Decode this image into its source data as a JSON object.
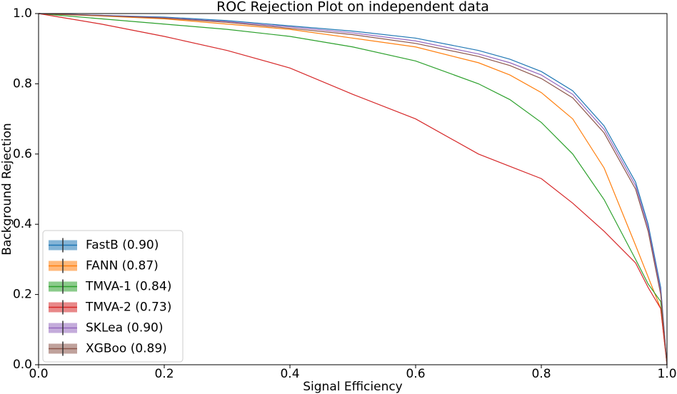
{
  "chart_data": {
    "type": "line",
    "title": "ROC Rejection Plot on independent data",
    "x_label": "Signal Efficiency",
    "y_label": "Background Rejection",
    "x": [
      0,
      0.1,
      0.2,
      0.3,
      0.4,
      0.5,
      0.6,
      0.7,
      0.75,
      0.8,
      0.85,
      0.9,
      0.95,
      0.97,
      0.99,
      1.0
    ],
    "series": [
      {
        "name": "FastB (0.90)",
        "color": "#1f77b4",
        "values": [
          1.0,
          0.995,
          0.99,
          0.98,
          0.965,
          0.95,
          0.93,
          0.895,
          0.87,
          0.835,
          0.78,
          0.68,
          0.52,
          0.4,
          0.22,
          0.0
        ]
      },
      {
        "name": "FANN (0.87)",
        "color": "#ff7f0e",
        "values": [
          1.0,
          0.993,
          0.985,
          0.97,
          0.955,
          0.93,
          0.905,
          0.86,
          0.825,
          0.775,
          0.7,
          0.56,
          0.34,
          0.25,
          0.16,
          0.0
        ]
      },
      {
        "name": "TMVA-1 (0.84)",
        "color": "#2ca02c",
        "values": [
          1.0,
          0.985,
          0.97,
          0.955,
          0.935,
          0.905,
          0.865,
          0.8,
          0.755,
          0.69,
          0.6,
          0.47,
          0.3,
          0.23,
          0.18,
          0.0
        ]
      },
      {
        "name": "TMVA-2 (0.73)",
        "color": "#d62728",
        "values": [
          1.0,
          0.97,
          0.935,
          0.895,
          0.845,
          0.77,
          0.7,
          0.6,
          0.565,
          0.53,
          0.46,
          0.38,
          0.29,
          0.22,
          0.16,
          0.0
        ]
      },
      {
        "name": "SKLea (0.90)",
        "color": "#9467bd",
        "values": [
          1.0,
          0.995,
          0.988,
          0.977,
          0.962,
          0.945,
          0.922,
          0.885,
          0.86,
          0.825,
          0.77,
          0.67,
          0.51,
          0.39,
          0.21,
          0.0
        ]
      },
      {
        "name": "XGBoo (0.89)",
        "color": "#8c564b",
        "values": [
          1.0,
          0.994,
          0.987,
          0.975,
          0.958,
          0.94,
          0.915,
          0.878,
          0.852,
          0.815,
          0.76,
          0.66,
          0.5,
          0.38,
          0.2,
          0.0
        ]
      }
    ],
    "xlim": [
      0,
      1.0
    ],
    "ylim": [
      0,
      1.0
    ],
    "xticks": [
      {
        "value": 0,
        "label": "0.0"
      },
      0.2,
      0.4,
      0.6,
      0.8,
      {
        "value": 1.0,
        "label": "1.0"
      }
    ],
    "yticks": [
      {
        "value": 0,
        "label": "0.0"
      },
      0.2,
      0.4,
      0.6,
      0.8,
      {
        "value": 1.0,
        "label": "1.0"
      }
    ],
    "legend": "lower left"
  }
}
